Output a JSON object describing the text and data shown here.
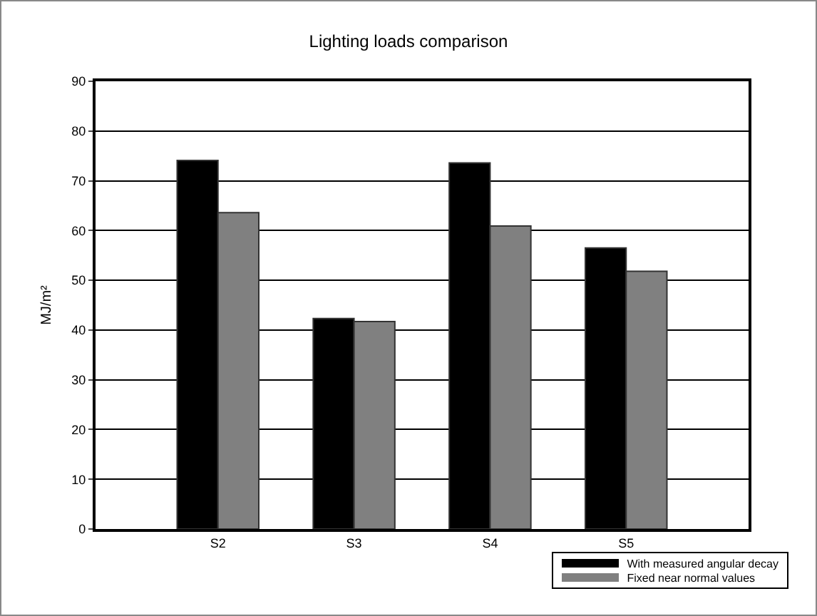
{
  "chart_data": {
    "type": "bar",
    "title": "Lighting loads comparison",
    "ylabel": "MJ/m²",
    "categories": [
      "S2",
      "S3",
      "S4",
      "S5"
    ],
    "series": [
      {
        "name": "With measured angular decay",
        "color": "#000000",
        "values": [
          74.1,
          42.3,
          73.6,
          56.5
        ]
      },
      {
        "name": "Fixed near normal values",
        "color": "#808080",
        "values": [
          63.6,
          41.7,
          60.9,
          51.8
        ]
      }
    ],
    "ylim": [
      0,
      90
    ],
    "yticks": [
      0,
      10,
      20,
      30,
      40,
      50,
      60,
      70,
      80,
      90
    ],
    "grid": "y",
    "legend": "bottom right"
  }
}
